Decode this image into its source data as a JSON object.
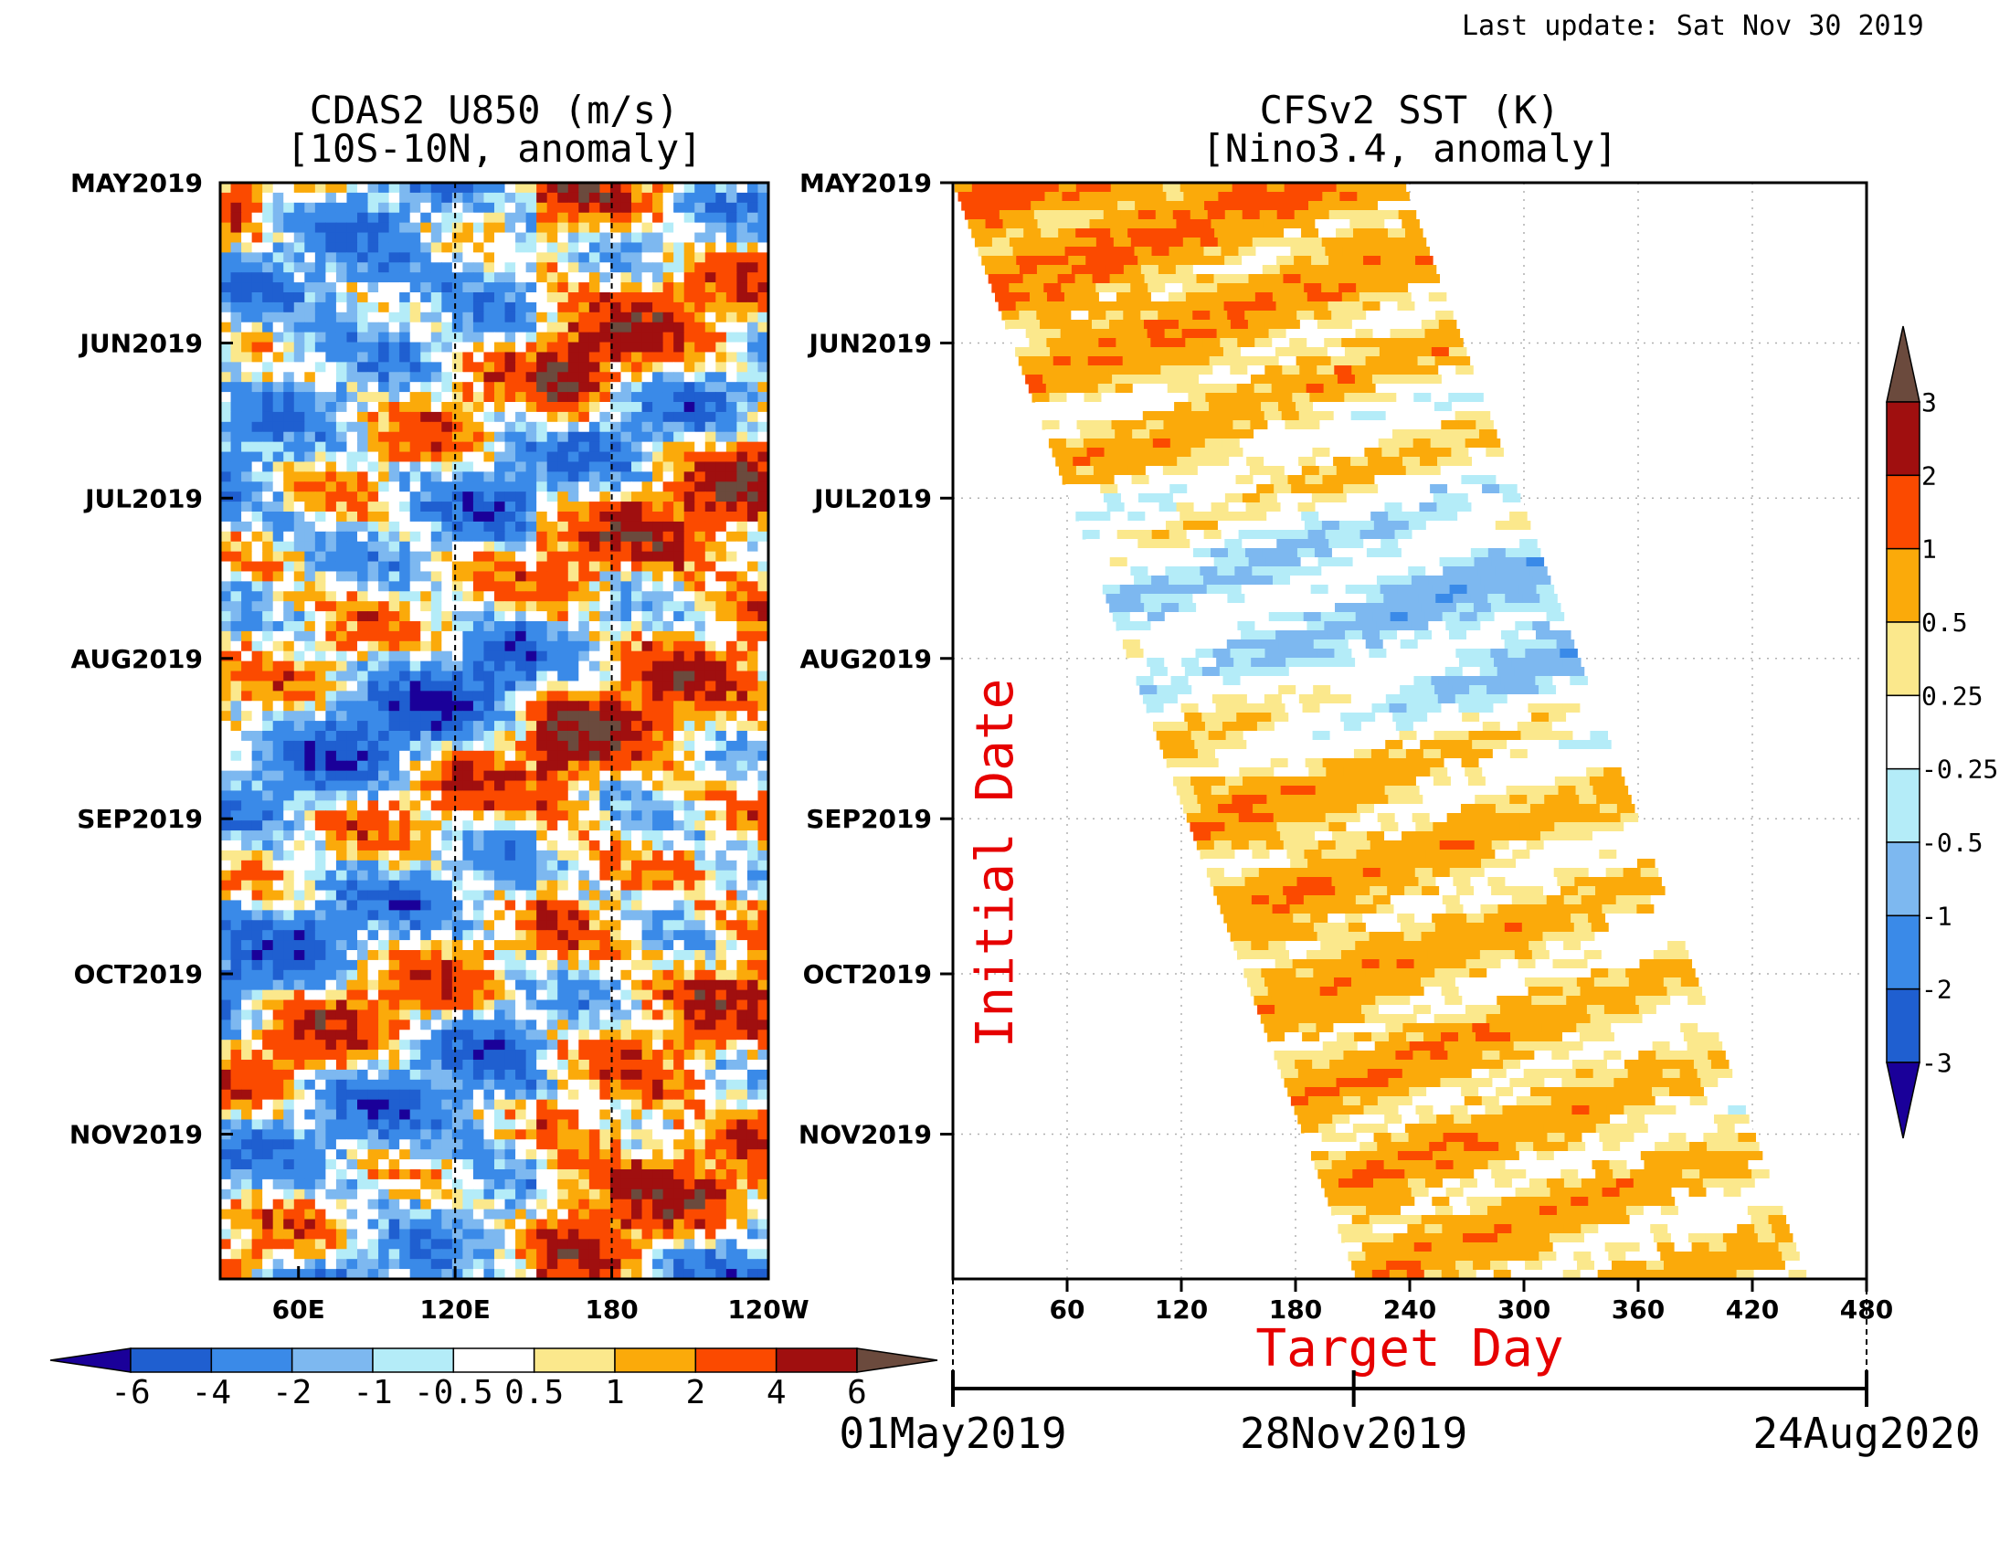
{
  "header": {
    "last_update": "Last update: Sat Nov 30 2019"
  },
  "colors": {
    "u850_levels": [
      "#1a0099",
      "#1f5fd0",
      "#3a8ae8",
      "#7db8f0",
      "#b4ecf8",
      "#ffffff",
      "#fbe88c",
      "#fbaa0a",
      "#fb4a00",
      "#a00f0f",
      "#6b4a3d"
    ],
    "sst_levels": [
      "#1a0099",
      "#1f5fd0",
      "#3a8ae8",
      "#7db8f0",
      "#b4ecf8",
      "#ffffff",
      "#fbe88c",
      "#fbaa0a",
      "#fb4a00",
      "#a00f0f",
      "#6b4a3d"
    ],
    "label_red": "#e60000"
  },
  "chart_data": [
    {
      "type": "heatmap",
      "title": "CDAS2 U850 (m/s)",
      "subtitle": "[10S-10N, anomaly]",
      "x_ticks": [
        "60E",
        "120E",
        "180",
        "120W"
      ],
      "x_tick_values": [
        60,
        120,
        180,
        240
      ],
      "xlim": [
        30,
        240
      ],
      "y_ticks": [
        "MAY2019",
        "JUN2019",
        "JUL2019",
        "AUG2019",
        "SEP2019",
        "OCT2019",
        "NOV2019"
      ],
      "y_tick_days": [
        0,
        31,
        61,
        92,
        123,
        153,
        184
      ],
      "ylim_days": [
        0,
        212
      ],
      "reference_lines": [
        120,
        180
      ],
      "colorbar": {
        "orientation": "horizontal",
        "labels": [
          "-6",
          "-4",
          "-2",
          "-1",
          "-0.5",
          "0.5",
          "1",
          "2",
          "4",
          "6"
        ],
        "bounds": [
          -6,
          -4,
          -2,
          -1,
          -0.5,
          0.5,
          1,
          2,
          4,
          6
        ]
      }
    },
    {
      "type": "heatmap",
      "title": "CFSv2 SST (K)",
      "subtitle": "[Nino3.4, anomaly]",
      "x_ticks": [
        "60",
        "120",
        "180",
        "240",
        "300",
        "360",
        "420",
        "480"
      ],
      "x_tick_values": [
        60,
        120,
        180,
        240,
        300,
        360,
        420,
        480
      ],
      "xlim": [
        0,
        480
      ],
      "xlabel": "Target Day",
      "ylabel": "Initial Date",
      "y_ticks": [
        "MAY2019",
        "JUN2019",
        "JUL2019",
        "AUG2019",
        "SEP2019",
        "OCT2019",
        "NOV2019"
      ],
      "y_tick_days": [
        0,
        31,
        61,
        92,
        123,
        153,
        184
      ],
      "ylim_days": [
        0,
        212
      ],
      "forecast_lead_days": 237,
      "date_axis": {
        "labels": [
          "01May2019",
          "28Nov2019",
          "24Aug2020"
        ],
        "days": [
          0,
          211,
          481
        ]
      },
      "colorbar": {
        "orientation": "vertical",
        "labels": [
          "3",
          "2",
          "1",
          "0.5",
          "0.25",
          "-0.25",
          "-0.5",
          "-1",
          "-2",
          "-3"
        ],
        "bounds": [
          3,
          2,
          1,
          0.5,
          0.25,
          -0.25,
          -0.5,
          -1,
          -2,
          -3
        ]
      }
    }
  ]
}
